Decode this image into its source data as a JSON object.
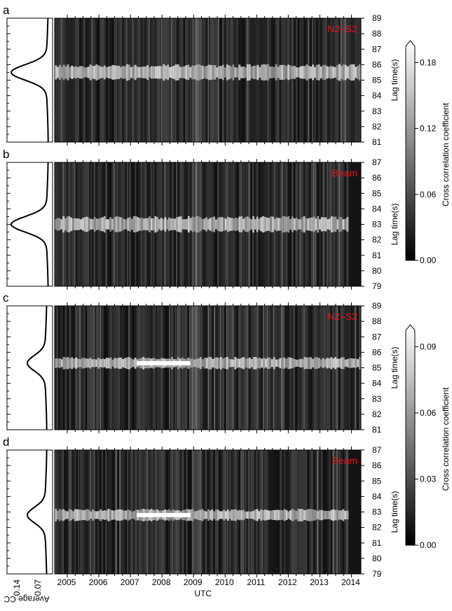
{
  "panels": [
    {
      "label": "a",
      "station": "N2–S2",
      "yticks": [
        "81",
        "82",
        "83",
        "84",
        "85",
        "86",
        "87",
        "88",
        "89"
      ],
      "ymin": 81,
      "ymax": 89,
      "peak": 85.5
    },
    {
      "label": "b",
      "station": "Beam",
      "yticks": [
        "79",
        "80",
        "81",
        "82",
        "83",
        "84",
        "85",
        "86",
        "87"
      ],
      "ymin": 79,
      "ymax": 87,
      "peak": 83
    },
    {
      "label": "c",
      "station": "N2–S2",
      "yticks": [
        "81",
        "82",
        "83",
        "84",
        "85",
        "86",
        "87",
        "88",
        "89"
      ],
      "ymin": 81,
      "ymax": 89,
      "peak": 85.3
    },
    {
      "label": "d",
      "station": "Beam",
      "yticks": [
        "79",
        "80",
        "81",
        "82",
        "83",
        "84",
        "85",
        "86",
        "87"
      ],
      "ymin": 79,
      "ymax": 87,
      "peak": 82.8
    }
  ],
  "ylabel": "Lag time(s)",
  "xlabel": "UTC",
  "xticks": [
    "2005",
    "2006",
    "2007",
    "2008",
    "2009",
    "2010",
    "2011",
    "2012",
    "2013",
    "2014"
  ],
  "avg_cc_label": "Average CC",
  "avg_cc_ticks": [
    "0.14",
    "0.07"
  ],
  "colorbars": [
    {
      "label": "Cross correlation coefficient",
      "ticks": [
        "0.18",
        "0.12",
        "0.06",
        "0.00"
      ],
      "range": [
        0,
        0.2
      ]
    },
    {
      "label": "Cross correlation coefficient",
      "ticks": [
        "0.09",
        "0.06",
        "0.03",
        "0.00"
      ],
      "range": [
        0,
        0.1
      ]
    }
  ],
  "colors": {
    "station_label": "#e8141b",
    "background": "#ffffff",
    "ink": "#000000"
  },
  "chart_data": [
    {
      "type": "heatmap",
      "panel": "a",
      "title": "N2–S2",
      "xlabel": "UTC",
      "ylabel": "Lag time(s)",
      "x_range": [
        2004.6,
        2014.3
      ],
      "ylim": [
        81,
        89
      ],
      "colorbar": [
        0,
        0.2
      ],
      "band_center": 85.5,
      "avg_cc_peak": 0.14
    },
    {
      "type": "heatmap",
      "panel": "b",
      "title": "Beam",
      "xlabel": "UTC",
      "ylabel": "Lag time(s)",
      "x_range": [
        2004.6,
        2014.3
      ],
      "ylim": [
        79,
        87
      ],
      "colorbar": [
        0,
        0.2
      ],
      "band_center": 83.0,
      "avg_cc_peak": 0.14
    },
    {
      "type": "heatmap",
      "panel": "c",
      "title": "N2–S2",
      "xlabel": "UTC",
      "ylabel": "Lag time(s)",
      "x_range": [
        2004.6,
        2014.3
      ],
      "ylim": [
        81,
        89
      ],
      "colorbar": [
        0,
        0.1
      ],
      "band_center": 85.3,
      "avg_cc_peak": 0.07
    },
    {
      "type": "heatmap",
      "panel": "d",
      "title": "Beam",
      "xlabel": "UTC",
      "ylabel": "Lag time(s)",
      "x_range": [
        2004.6,
        2014.3
      ],
      "ylim": [
        79,
        87
      ],
      "colorbar": [
        0,
        0.1
      ],
      "band_center": 82.8,
      "avg_cc_peak": 0.07
    }
  ]
}
